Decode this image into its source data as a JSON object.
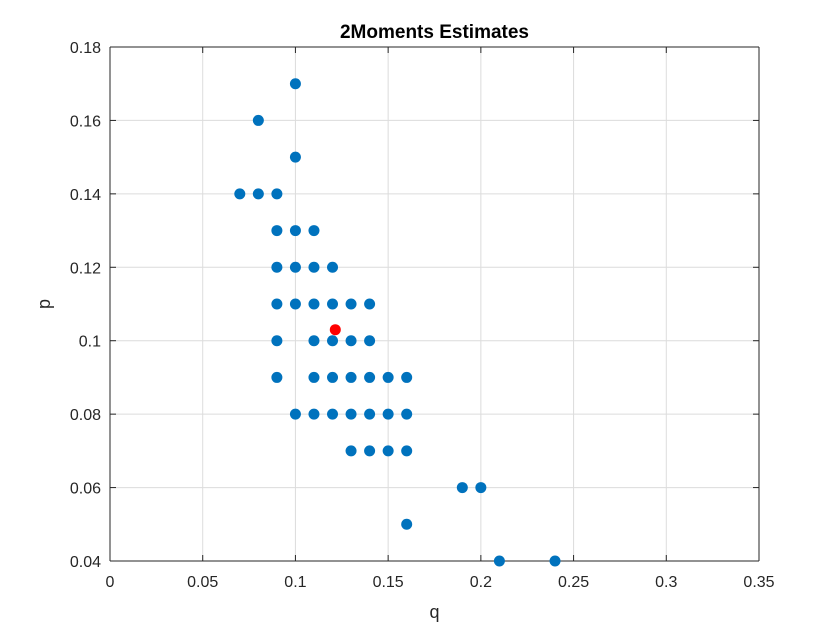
{
  "chart_data": {
    "type": "scatter",
    "title": "2Moments Estimates",
    "xlabel": "q",
    "ylabel": "p",
    "xlim": [
      0,
      0.35
    ],
    "ylim": [
      0.04,
      0.18
    ],
    "xticks": [
      0,
      0.05,
      0.1,
      0.15,
      0.2,
      0.25,
      0.3,
      0.35
    ],
    "xtick_labels": [
      "0",
      "0.05",
      "0.1",
      "0.15",
      "0.2",
      "0.25",
      "0.3",
      "0.35"
    ],
    "yticks": [
      0.04,
      0.06,
      0.08,
      0.1,
      0.12,
      0.14,
      0.16,
      0.18
    ],
    "ytick_labels": [
      "0.04",
      "0.06",
      "0.08",
      "0.1",
      "0.12",
      "0.14",
      "0.16",
      "0.18"
    ],
    "grid": true,
    "legend": "none",
    "series": [
      {
        "color": "#0072BD",
        "points": [
          [
            0.1,
            0.17
          ],
          [
            0.08,
            0.16
          ],
          [
            0.1,
            0.15
          ],
          [
            0.07,
            0.14
          ],
          [
            0.08,
            0.14
          ],
          [
            0.09,
            0.14
          ],
          [
            0.09,
            0.13
          ],
          [
            0.1,
            0.13
          ],
          [
            0.11,
            0.13
          ],
          [
            0.09,
            0.12
          ],
          [
            0.1,
            0.12
          ],
          [
            0.11,
            0.12
          ],
          [
            0.12,
            0.12
          ],
          [
            0.09,
            0.11
          ],
          [
            0.1,
            0.11
          ],
          [
            0.11,
            0.11
          ],
          [
            0.12,
            0.11
          ],
          [
            0.13,
            0.11
          ],
          [
            0.14,
            0.11
          ],
          [
            0.09,
            0.1
          ],
          [
            0.11,
            0.1
          ],
          [
            0.12,
            0.1
          ],
          [
            0.13,
            0.1
          ],
          [
            0.14,
            0.1
          ],
          [
            0.09,
            0.09
          ],
          [
            0.11,
            0.09
          ],
          [
            0.12,
            0.09
          ],
          [
            0.13,
            0.09
          ],
          [
            0.14,
            0.09
          ],
          [
            0.15,
            0.09
          ],
          [
            0.16,
            0.09
          ],
          [
            0.1,
            0.08
          ],
          [
            0.11,
            0.08
          ],
          [
            0.12,
            0.08
          ],
          [
            0.13,
            0.08
          ],
          [
            0.14,
            0.08
          ],
          [
            0.15,
            0.08
          ],
          [
            0.16,
            0.08
          ],
          [
            0.13,
            0.07
          ],
          [
            0.14,
            0.07
          ],
          [
            0.15,
            0.07
          ],
          [
            0.16,
            0.07
          ],
          [
            0.19,
            0.06
          ],
          [
            0.2,
            0.06
          ],
          [
            0.16,
            0.05
          ],
          [
            0.21,
            0.04
          ],
          [
            0.24,
            0.04
          ]
        ]
      },
      {
        "color": "#FF0000",
        "points": [
          [
            0.1215,
            0.103
          ]
        ]
      }
    ]
  }
}
